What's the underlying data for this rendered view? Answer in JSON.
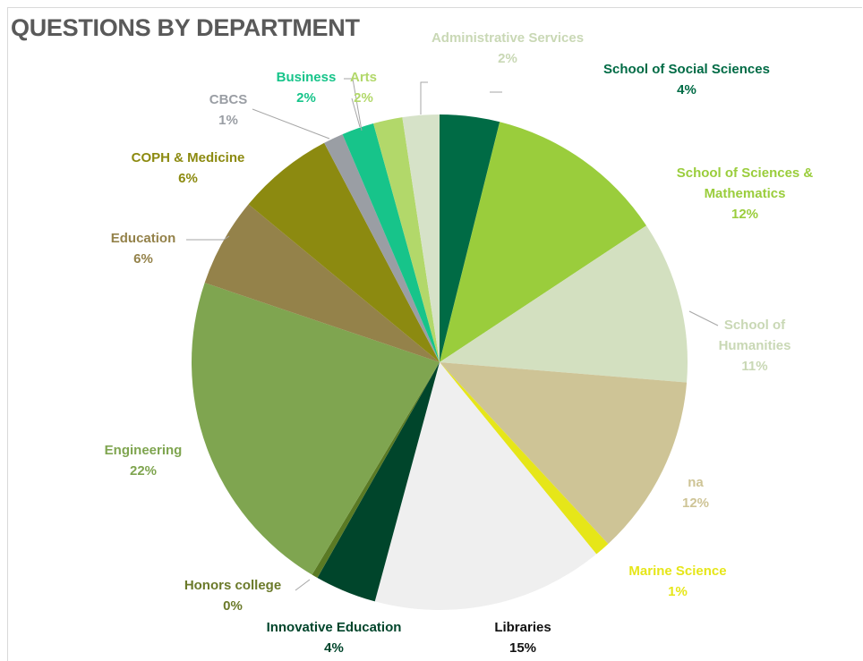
{
  "chart_data": {
    "type": "pie",
    "title": "QUESTIONS BY DEPARTMENT",
    "categories": [
      "School of Social Sciences",
      "School of Sciences & Mathematics",
      "School of Humanities",
      "na",
      "Marine Science",
      "Libraries",
      "Innovative Education",
      "Honors college",
      "Engineering",
      "Education",
      "COPH & Medicine",
      "CBCS",
      "Business",
      "Arts",
      "Administrative Services"
    ],
    "values": [
      3.9,
      11.8,
      10.6,
      11.8,
      1.0,
      15.1,
      4.0,
      0.4,
      21.6,
      5.8,
      6.3,
      1.3,
      2.1,
      1.9,
      2.4
    ],
    "value_labels": [
      "4%",
      "12%",
      "11%",
      "12%",
      "1%",
      "15%",
      "4%",
      "0%",
      "22%",
      "6%",
      "6%",
      "1%",
      "2%",
      "2%",
      "2%"
    ],
    "colors": [
      "#006b45",
      "#9acd3c",
      "#d3e0c0",
      "#cec496",
      "#e6e619",
      "#efefef",
      "#00452b",
      "#5a7a24",
      "#7fa550",
      "#94824a",
      "#8c8a10",
      "#9a9ea4",
      "#17c48a",
      "#b2d86a",
      "#d6e2c8"
    ]
  }
}
